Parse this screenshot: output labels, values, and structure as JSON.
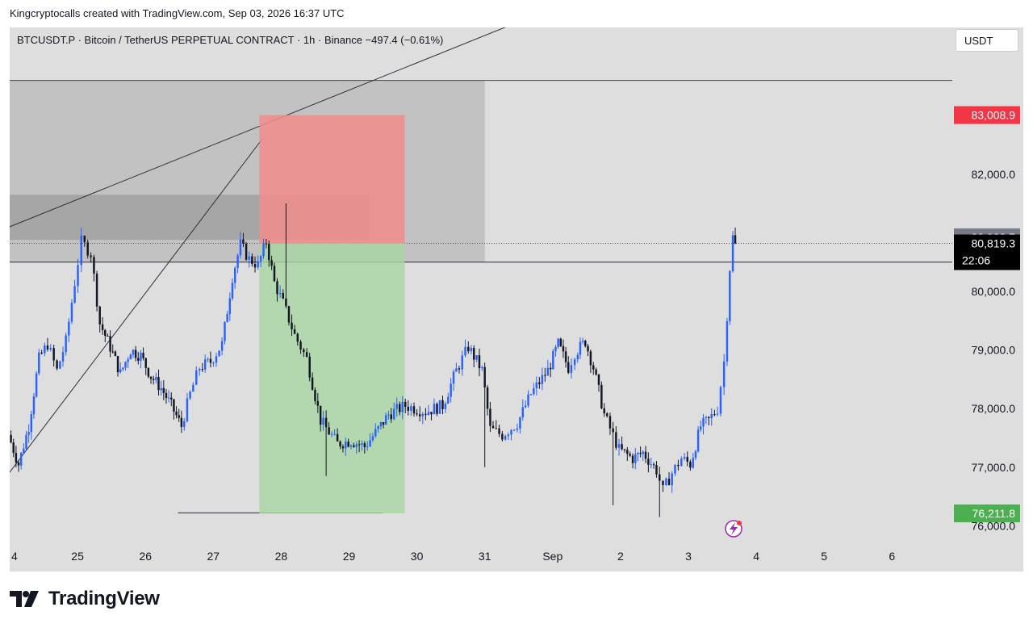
{
  "header": {
    "attribution": "Kingcryptocalls created with TradingView.com, Sep 03, 2026 16:37 UTC"
  },
  "symbol_bar": {
    "text": "BTCUSDT.P · Bitcoin / TetherUS PERPETUAL CONTRACT · 1h · Binance  −497.4 (−0.61%)"
  },
  "currency": "USDT",
  "footer": {
    "brand": "TradingView"
  },
  "colors": {
    "bull": "#2962ff",
    "bear": "#131722",
    "stop_zone": "#f28c8c",
    "target_zone": "#a8d5a2",
    "stop_label": "#f23645",
    "target_label": "#4caf50",
    "current_label": "#000000",
    "last_label": "#787b86"
  },
  "chart_data": {
    "type": "candlestick",
    "timeframe": "1h",
    "x_ticks": [
      "4",
      "25",
      "26",
      "27",
      "28",
      "29",
      "30",
      "31",
      "Sep",
      "2",
      "3",
      "4",
      "5",
      "6"
    ],
    "y_ticks": [
      "77,000.0",
      "78,000.0",
      "79,000.0",
      "80,000.0",
      "82,000.0"
    ],
    "y_tick_values": [
      77000,
      78000,
      79000,
      80000,
      82000
    ],
    "y_bottom_tick_partial": "76,000.0",
    "y_range": [
      76000,
      83600
    ],
    "price_labels": {
      "stop": "83,008.9",
      "stop_value": 83008.9,
      "last": "80,923.7",
      "last_value": 80923.7,
      "current": "80,819.3",
      "current_value": 80819.3,
      "countdown": "22:06",
      "target": "76,211.8",
      "target_value": 76211.8
    },
    "position": {
      "side": "short",
      "entry": 80819.3,
      "stop": 83008.9,
      "target": 76211.8,
      "start_day": 3.68,
      "end_day": 5.82
    },
    "zones": [
      {
        "kind": "resistance-outer",
        "top": 83600,
        "bottom": 80500,
        "start_day": -0.5,
        "end_day": 7
      },
      {
        "kind": "resistance-inner",
        "top": 81650,
        "bottom": 80880,
        "start_day": -0.35,
        "end_day": 5.3
      }
    ],
    "levels": [
      {
        "kind": "horizontal",
        "price": 80500
      },
      {
        "kind": "dotted-current",
        "price": 80819.3
      }
    ],
    "trendlines": [
      {
        "from": [
          -0.5,
          80870
        ],
        "to": [
          7.5,
          84600
        ]
      },
      {
        "from": [
          -0.5,
          76150
        ],
        "to": [
          3.72,
          82600
        ]
      },
      {
        "from": [
          2.48,
          76220
        ],
        "to": [
          5.5,
          76220
        ]
      }
    ],
    "price_path": [
      [
        0.0,
        77550
      ],
      [
        0.15,
        77050
      ],
      [
        0.3,
        77700
      ],
      [
        0.45,
        78850
      ],
      [
        0.58,
        79100
      ],
      [
        0.72,
        78650
      ],
      [
        0.85,
        79150
      ],
      [
        0.98,
        80150
      ],
      [
        1.08,
        80850
      ],
      [
        1.22,
        80650
      ],
      [
        1.35,
        79450
      ],
      [
        1.5,
        79050
      ],
      [
        1.65,
        78600
      ],
      [
        1.8,
        79000
      ],
      [
        1.95,
        78900
      ],
      [
        2.1,
        78550
      ],
      [
        2.25,
        78350
      ],
      [
        2.4,
        78050
      ],
      [
        2.55,
        77700
      ],
      [
        2.68,
        78250
      ],
      [
        2.82,
        78700
      ],
      [
        2.98,
        78800
      ],
      [
        3.15,
        79100
      ],
      [
        3.3,
        80250
      ],
      [
        3.42,
        80800
      ],
      [
        3.55,
        80550
      ],
      [
        3.68,
        80450
      ],
      [
        3.8,
        80850
      ],
      [
        3.92,
        80150
      ],
      [
        4.05,
        79800
      ],
      [
        4.22,
        79250
      ],
      [
        4.4,
        78850
      ],
      [
        4.6,
        77800
      ],
      [
        4.85,
        77400
      ],
      [
        5.05,
        77450
      ],
      [
        5.25,
        77350
      ],
      [
        5.45,
        77650
      ],
      [
        5.6,
        77900
      ],
      [
        5.85,
        78050
      ],
      [
        6.15,
        77950
      ],
      [
        6.4,
        78050
      ],
      [
        6.6,
        78650
      ],
      [
        6.78,
        79050
      ],
      [
        6.98,
        78650
      ],
      [
        7.1,
        77650
      ],
      [
        7.28,
        77550
      ],
      [
        7.5,
        77750
      ],
      [
        7.7,
        78250
      ],
      [
        7.95,
        78650
      ],
      [
        8.1,
        79100
      ],
      [
        8.25,
        78700
      ],
      [
        8.35,
        78950
      ],
      [
        8.5,
        79150
      ],
      [
        8.62,
        78700
      ],
      [
        8.78,
        77900
      ],
      [
        9.0,
        77300
      ],
      [
        9.2,
        77150
      ],
      [
        9.35,
        77250
      ],
      [
        9.55,
        76950
      ],
      [
        9.65,
        76600
      ],
      [
        9.78,
        76900
      ],
      [
        9.92,
        77150
      ],
      [
        10.05,
        77050
      ],
      [
        10.2,
        77700
      ],
      [
        10.32,
        77800
      ],
      [
        10.45,
        78000
      ],
      [
        10.55,
        78800
      ],
      [
        10.63,
        80400
      ],
      [
        10.68,
        80923.7
      ],
      [
        10.7,
        80819.3
      ]
    ]
  }
}
